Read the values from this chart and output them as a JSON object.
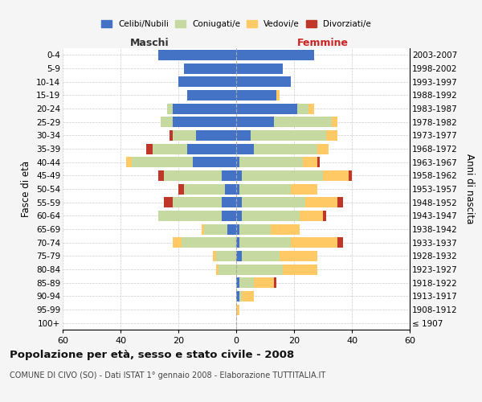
{
  "age_groups": [
    "100+",
    "95-99",
    "90-94",
    "85-89",
    "80-84",
    "75-79",
    "70-74",
    "65-69",
    "60-64",
    "55-59",
    "50-54",
    "45-49",
    "40-44",
    "35-39",
    "30-34",
    "25-29",
    "20-24",
    "15-19",
    "10-14",
    "5-9",
    "0-4"
  ],
  "birth_years": [
    "≤ 1907",
    "1908-1912",
    "1913-1917",
    "1918-1922",
    "1923-1927",
    "1928-1932",
    "1933-1937",
    "1938-1942",
    "1943-1947",
    "1948-1952",
    "1953-1957",
    "1958-1962",
    "1963-1967",
    "1968-1972",
    "1973-1977",
    "1978-1982",
    "1983-1987",
    "1988-1992",
    "1993-1997",
    "1998-2002",
    "2003-2007"
  ],
  "maschi": {
    "celibe": [
      0,
      0,
      0,
      0,
      0,
      0,
      0,
      3,
      5,
      5,
      4,
      5,
      15,
      17,
      14,
      22,
      22,
      17,
      20,
      18,
      27
    ],
    "coniugato": [
      0,
      0,
      0,
      0,
      6,
      7,
      19,
      8,
      22,
      17,
      14,
      20,
      21,
      12,
      8,
      4,
      2,
      0,
      0,
      0,
      0
    ],
    "vedovo": [
      0,
      0,
      0,
      0,
      1,
      1,
      3,
      1,
      0,
      0,
      0,
      0,
      2,
      0,
      0,
      0,
      0,
      0,
      0,
      0,
      0
    ],
    "divorziato": [
      0,
      0,
      0,
      0,
      0,
      0,
      0,
      0,
      0,
      3,
      2,
      2,
      0,
      2,
      1,
      0,
      0,
      0,
      0,
      0,
      0
    ]
  },
  "femmine": {
    "nubile": [
      0,
      0,
      1,
      1,
      0,
      2,
      1,
      1,
      2,
      2,
      1,
      2,
      1,
      6,
      5,
      13,
      21,
      14,
      19,
      16,
      27
    ],
    "coniugata": [
      0,
      0,
      1,
      5,
      16,
      13,
      18,
      11,
      20,
      22,
      18,
      28,
      22,
      22,
      26,
      20,
      4,
      0,
      0,
      0,
      0
    ],
    "vedova": [
      0,
      1,
      4,
      7,
      12,
      13,
      16,
      10,
      8,
      11,
      9,
      9,
      5,
      4,
      4,
      2,
      2,
      1,
      0,
      0,
      0
    ],
    "divorziata": [
      0,
      0,
      0,
      1,
      0,
      0,
      2,
      0,
      1,
      2,
      0,
      1,
      1,
      0,
      0,
      0,
      0,
      0,
      0,
      0,
      0
    ]
  },
  "colors": {
    "celibe": "#4472C4",
    "coniugato": "#C6D9A0",
    "vedovo": "#FFC966",
    "divorziato": "#C0372A"
  },
  "xlim": 60,
  "title": "Popolazione per età, sesso e stato civile - 2008",
  "subtitle": "COMUNE DI CIVO (SO) - Dati ISTAT 1° gennaio 2008 - Elaborazione TUTTITALIA.IT",
  "ylabel_left": "Fasce di età",
  "ylabel_right": "Anni di nascita",
  "xlabel_maschi": "Maschi",
  "xlabel_femmine": "Femmine",
  "bg_color": "#f5f5f5",
  "plot_bg_color": "#ffffff"
}
